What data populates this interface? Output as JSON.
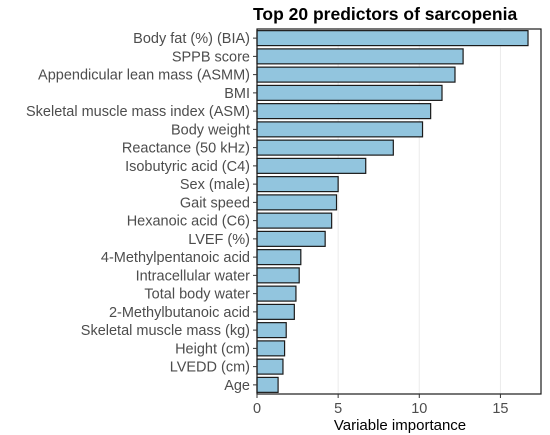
{
  "chart_data": {
    "type": "bar",
    "orientation": "horizontal",
    "title": "Top 20 predictors of sarcopenia",
    "xlabel": "Variable importance",
    "ylabel": "",
    "xlim": [
      0,
      17.5
    ],
    "x_ticks": [
      0,
      5,
      10,
      15
    ],
    "grid": true,
    "bar_color": "#92c5de",
    "bar_edge_color": "#1a1a1a",
    "categories": [
      "Body fat (%) (BIA)",
      "SPPB score",
      "Appendicular lean mass (ASMM)",
      "BMI",
      "Skeletal muscle mass index (ASM)",
      "Body weight",
      "Reactance (50 kHz)",
      "Isobutyric acid (C4)",
      "Sex (male)",
      "Gait speed",
      "Hexanoic acid (C6)",
      "LVEF (%)",
      "4-Methylpentanoic acid",
      "Intracellular water",
      "Total body water",
      "2-Methylbutanoic acid",
      "Skeletal muscle mass (kg)",
      "Height (cm)",
      "LVEDD (cm)",
      "Age"
    ],
    "values": [
      16.7,
      12.7,
      12.2,
      11.4,
      10.7,
      10.2,
      8.4,
      6.7,
      5.0,
      4.9,
      4.6,
      4.2,
      2.7,
      2.6,
      2.4,
      2.3,
      1.8,
      1.7,
      1.6,
      1.3
    ]
  }
}
